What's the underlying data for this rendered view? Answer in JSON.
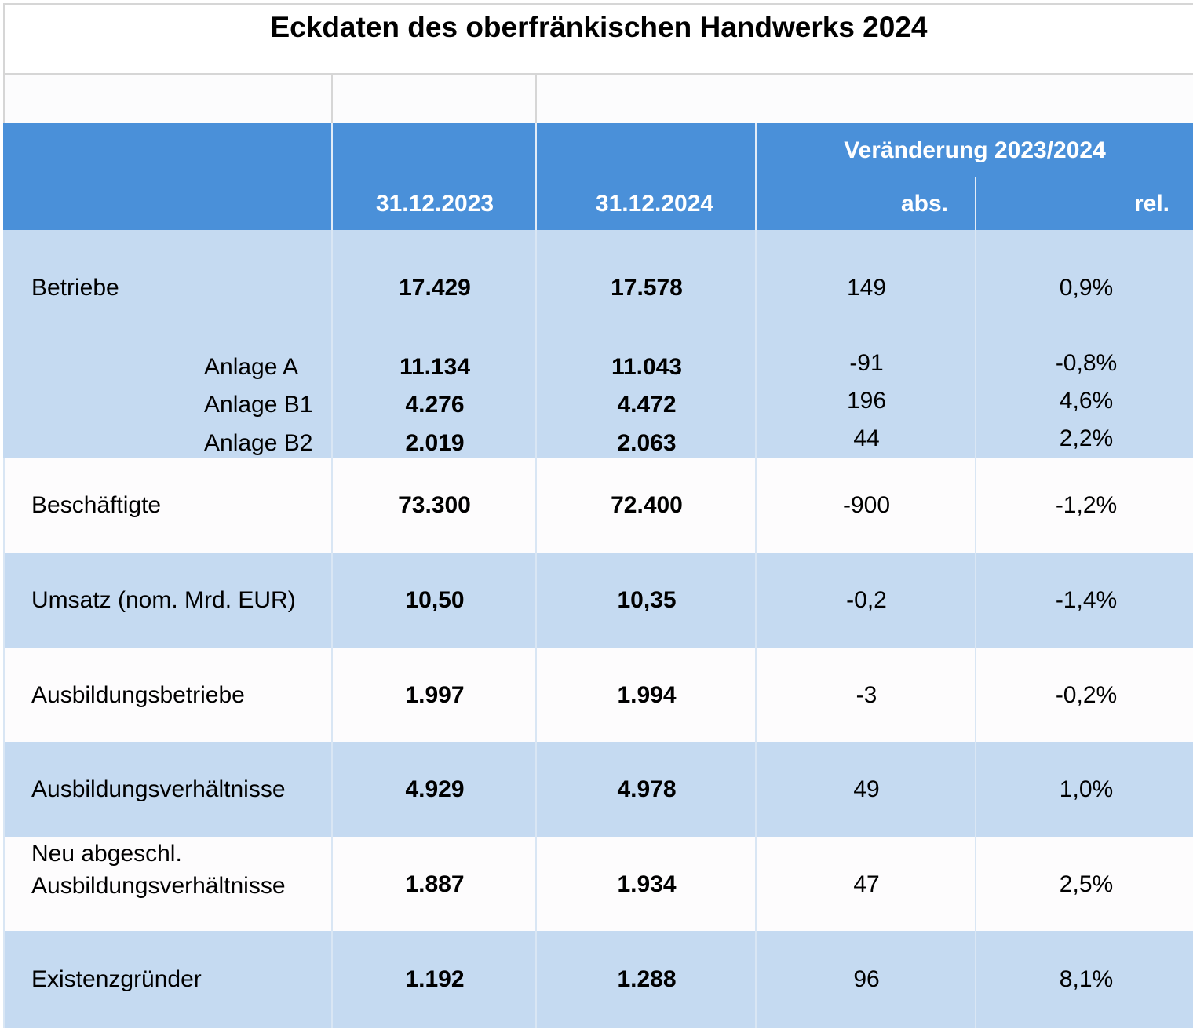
{
  "title": "Eckdaten des oberfränkischen Handwerks 2024",
  "header": {
    "col1": "31.12.2023",
    "col2": "31.12.2024",
    "group": "Veränderung 2023/2024",
    "abs": "abs.",
    "rel": "rel."
  },
  "rows": {
    "betriebe": {
      "label": "Betriebe",
      "v2023": "17.429",
      "v2024": "17.578",
      "abs": "149",
      "rel": "0,9%"
    },
    "anlage_a": {
      "label": "Anlage A",
      "v2023": "11.134",
      "v2024": "11.043",
      "abs": "-91",
      "rel": "-0,8%"
    },
    "anlage_b1": {
      "label": "Anlage B1",
      "v2023": "4.276",
      "v2024": "4.472",
      "abs": "196",
      "rel": "4,6%"
    },
    "anlage_b2": {
      "label": "Anlage B2",
      "v2023": "2.019",
      "v2024": "2.063",
      "abs": "44",
      "rel": "2,2%"
    },
    "beschaeftigte": {
      "label": "Beschäftigte",
      "v2023": "73.300",
      "v2024": "72.400",
      "abs": "-900",
      "rel": "-1,2%"
    },
    "umsatz": {
      "label": "Umsatz (nom. Mrd. EUR)",
      "v2023": "10,50",
      "v2024": "10,35",
      "abs": "-0,2",
      "rel": "-1,4%"
    },
    "ausbildungsbetriebe": {
      "label": "Ausbildungsbetriebe",
      "v2023": "1.997",
      "v2024": "1.994",
      "abs": "-3",
      "rel": "-0,2%"
    },
    "ausbildungsverhaeltnisse": {
      "label": "Ausbildungsverhältnisse",
      "v2023": "4.929",
      "v2024": "4.978",
      "abs": "49",
      "rel": "1,0%"
    },
    "neu_abgeschl": {
      "label_line1": "Neu abgeschl.",
      "label_line2": "Ausbildungsverhältnisse",
      "v2023": "1.887",
      "v2024": "1.934",
      "abs": "47",
      "rel": "2,5%"
    },
    "existenzgruender": {
      "label": "Existenzgründer",
      "v2023": "1.192",
      "v2024": "1.288",
      "abs": "96",
      "rel": "8,1%"
    }
  },
  "colors": {
    "header_bg": "#4a90d9",
    "row_blue": "#c5daf1",
    "row_white": "#fdfcfd"
  }
}
